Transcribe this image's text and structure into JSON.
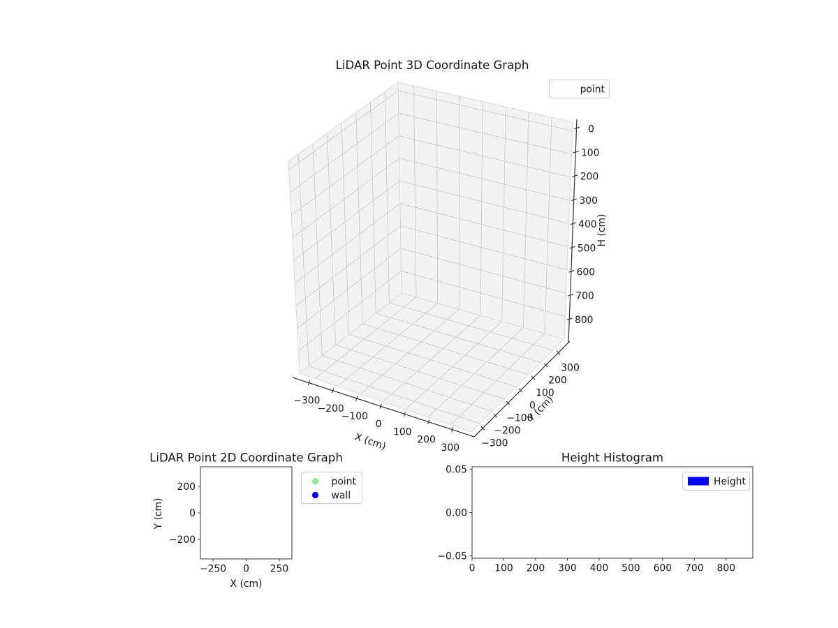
{
  "figure": {
    "background": "#ffffff",
    "text_color": "#151515",
    "colors": {
      "pane": "#f2f2f2",
      "grid": "#d2d2d2",
      "pane_edge": "#dadada",
      "axis_line": "#3c3c3c",
      "spine": "#333333"
    }
  },
  "chart_data": [
    {
      "id": "lidar-3d",
      "type": "scatter3d",
      "title": "LiDAR Point 3D Coordinate Graph",
      "xlabel": "X (cm)",
      "ylabel": "Y (cm)",
      "zlabel": "H (cm)",
      "xticks": {
        "values": [
          -300,
          -200,
          -100,
          0,
          100,
          200,
          300
        ],
        "labels": [
          "−300",
          "−200",
          "−100",
          "0",
          "100",
          "200",
          "300"
        ]
      },
      "yticks": {
        "values": [
          -300,
          -200,
          -100,
          0,
          100,
          200,
          300
        ],
        "labels": [
          "−300",
          "−200",
          "−100",
          "0",
          "100",
          "200",
          "300"
        ]
      },
      "zticks": {
        "values": [
          0,
          100,
          200,
          300,
          400,
          500,
          600,
          700,
          800
        ],
        "labels": [
          "0",
          "100",
          "200",
          "300",
          "400",
          "500",
          "600",
          "700",
          "800"
        ]
      },
      "xlim": [
        -370,
        370
      ],
      "ylim": [
        -370,
        370
      ],
      "zlim": [
        -35,
        915
      ],
      "zaxis_inverted": true,
      "grid": true,
      "legend": {
        "position": "upper-right",
        "entries": [
          {
            "label": "point",
            "marker": "none",
            "color": ""
          }
        ]
      },
      "points": []
    },
    {
      "id": "lidar-2d",
      "type": "scatter",
      "title": "LiDAR Point 2D Coordinate Graph",
      "xlabel": "X (cm)",
      "ylabel": "Y (cm)",
      "xlim": [
        -345,
        345
      ],
      "ylim": [
        -348,
        348
      ],
      "xticks": {
        "values": [
          -250,
          0,
          250
        ],
        "labels": [
          "−250",
          "0",
          "250"
        ]
      },
      "yticks": {
        "values": [
          200,
          0,
          -200
        ],
        "labels": [
          "200",
          "0",
          "−200"
        ]
      },
      "grid": false,
      "legend": {
        "position": "outside-right",
        "entries": [
          {
            "label": "point",
            "marker": "circle",
            "color": "#90ee90"
          },
          {
            "label": "wall",
            "marker": "circle",
            "color": "#0000ff"
          }
        ]
      },
      "points": []
    },
    {
      "id": "height-histogram",
      "type": "bar",
      "title": "Height Histogram",
      "xlabel": "",
      "ylabel": "",
      "xlim": [
        0,
        884
      ],
      "ylim": [
        -0.0527,
        0.0527
      ],
      "xticks": {
        "values": [
          0,
          100,
          200,
          300,
          400,
          500,
          600,
          700,
          800
        ],
        "labels": [
          "0",
          "100",
          "200",
          "300",
          "400",
          "500",
          "600",
          "700",
          "800"
        ]
      },
      "yticks": {
        "values": [
          0.05,
          0.0,
          -0.05
        ],
        "labels": [
          "0.05",
          "0.00",
          "−0.05"
        ]
      },
      "grid": false,
      "legend": {
        "position": "upper-right",
        "entries": [
          {
            "label": "Height",
            "marker": "rect",
            "color": "#0000ff"
          }
        ]
      },
      "values": []
    }
  ]
}
